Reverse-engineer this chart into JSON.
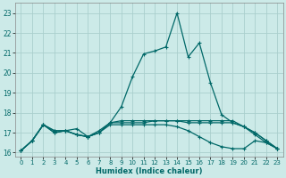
{
  "title": "",
  "xlabel": "Humidex (Indice chaleur)",
  "xlim": [
    -0.5,
    23.5
  ],
  "ylim": [
    15.8,
    23.5
  ],
  "yticks": [
    16,
    17,
    18,
    19,
    20,
    21,
    22,
    23
  ],
  "xticks": [
    0,
    1,
    2,
    3,
    4,
    5,
    6,
    7,
    8,
    9,
    10,
    11,
    12,
    13,
    14,
    15,
    16,
    17,
    18,
    19,
    20,
    21,
    22,
    23
  ],
  "bg_color": "#cceae8",
  "grid_color": "#aacfcd",
  "line_color": "#006868",
  "curves": [
    [
      16.1,
      16.6,
      17.4,
      17.0,
      17.1,
      17.2,
      16.8,
      17.1,
      17.5,
      18.3,
      19.8,
      20.95,
      21.1,
      21.3,
      23.0,
      20.8,
      21.5,
      19.5,
      17.9,
      17.5,
      17.3,
      17.0,
      16.6,
      16.2
    ],
    [
      16.1,
      16.6,
      17.4,
      17.0,
      17.1,
      16.9,
      16.8,
      17.0,
      17.5,
      17.6,
      17.6,
      17.6,
      17.6,
      17.6,
      17.6,
      17.6,
      17.6,
      17.6,
      17.6,
      17.6,
      17.3,
      17.0,
      16.6,
      16.2
    ],
    [
      16.1,
      16.6,
      17.4,
      17.1,
      17.1,
      16.9,
      16.8,
      17.0,
      17.5,
      17.5,
      17.5,
      17.5,
      17.6,
      17.6,
      17.6,
      17.5,
      17.5,
      17.5,
      17.5,
      17.5,
      17.3,
      16.9,
      16.5,
      16.2
    ],
    [
      16.1,
      16.6,
      17.4,
      17.1,
      17.1,
      16.9,
      16.8,
      17.0,
      17.4,
      17.4,
      17.4,
      17.4,
      17.4,
      17.4,
      17.3,
      17.1,
      16.8,
      16.5,
      16.3,
      16.2,
      16.2,
      16.6,
      16.5,
      16.2
    ]
  ]
}
